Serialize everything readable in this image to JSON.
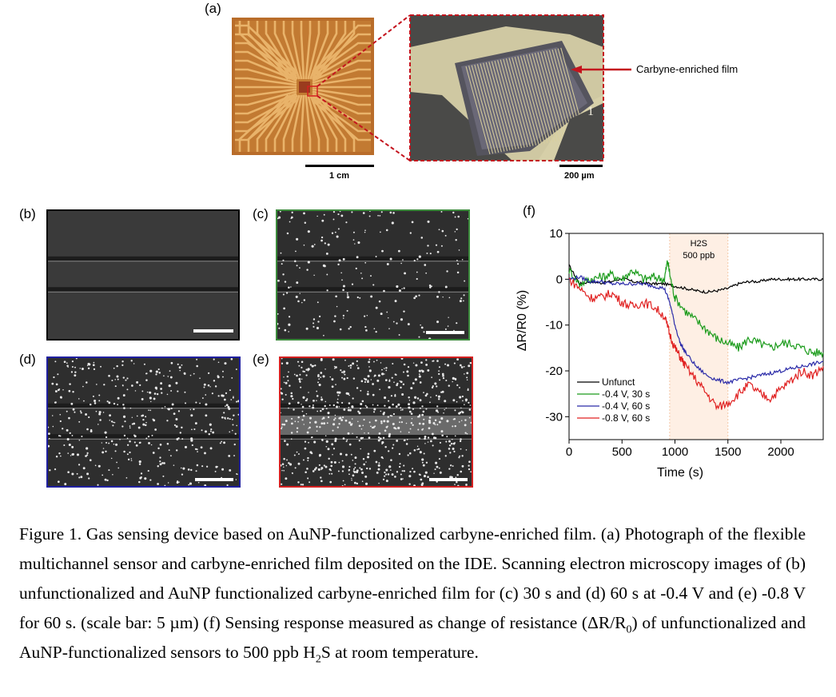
{
  "panels": {
    "a": "(a)",
    "b": "(b)",
    "c": "(c)",
    "d": "(d)",
    "e": "(e)",
    "f": "(f)"
  },
  "panel_a": {
    "scale_left": "1 cm",
    "scale_right": "200 µm",
    "annotation": "Carbyne-enriched film",
    "channel_number": "1"
  },
  "chart_data": {
    "type": "line",
    "xlabel": "Time (s)",
    "ylabel": "ΔR/R0 (%)",
    "xlim": [
      0,
      2400
    ],
    "ylim": [
      -35,
      10
    ],
    "xticks": [
      0,
      500,
      1000,
      1500,
      2000
    ],
    "yticks": [
      10,
      0,
      -10,
      -20,
      -30
    ],
    "shaded_region": {
      "x": [
        950,
        1500
      ],
      "label_line1": "H2S",
      "label_line2": "500 ppb"
    },
    "legend_placement": "bottom-left",
    "series": [
      {
        "name": "Unfunct",
        "color": "#000000",
        "x": [
          0,
          100,
          200,
          300,
          400,
          500,
          600,
          700,
          800,
          900,
          1000,
          1100,
          1200,
          1300,
          1400,
          1500,
          1600,
          1700,
          1800,
          1900,
          2000,
          2100,
          2200,
          2300,
          2400
        ],
        "y": [
          3,
          -1,
          -0.5,
          -0.8,
          -0.5,
          0.2,
          -0.5,
          -0.8,
          -1,
          -1,
          -1.5,
          -2,
          -2.5,
          -2.8,
          -2.5,
          -2,
          -1,
          -0.5,
          -0.5,
          0,
          0,
          0,
          0,
          0,
          0
        ]
      },
      {
        "name": "-0.4 V, 30 s",
        "color": "#1a9b1a",
        "x": [
          0,
          100,
          200,
          300,
          400,
          500,
          600,
          700,
          800,
          900,
          930,
          960,
          1000,
          1100,
          1200,
          1300,
          1400,
          1500,
          1600,
          1700,
          1800,
          1900,
          2000,
          2100,
          2200,
          2300,
          2400
        ],
        "y": [
          2,
          -1,
          0,
          0.5,
          1,
          0,
          2,
          0,
          0.5,
          0,
          4,
          0,
          -4,
          -7,
          -9,
          -11,
          -13,
          -14,
          -15,
          -13,
          -14,
          -15,
          -14,
          -14,
          -15,
          -16,
          -16
        ]
      },
      {
        "name": "-0.4 V, 60 s",
        "color": "#2a2aa8",
        "x": [
          0,
          100,
          200,
          300,
          400,
          500,
          600,
          700,
          800,
          900,
          950,
          1000,
          1050,
          1100,
          1200,
          1300,
          1400,
          1500,
          1600,
          1700,
          1800,
          1900,
          2000,
          2100,
          2200,
          2300,
          2400
        ],
        "y": [
          0,
          0.5,
          -0.5,
          -0.5,
          -1,
          -1,
          -1,
          -1,
          -1.5,
          -2,
          -5,
          -10,
          -14,
          -16,
          -19,
          -21,
          -22,
          -22.5,
          -22,
          -21.5,
          -21,
          -20.5,
          -20,
          -19.5,
          -19,
          -18.5,
          -18
        ]
      },
      {
        "name": "-0.8 V, 60 s",
        "color": "#e02020",
        "x": [
          0,
          100,
          200,
          300,
          400,
          500,
          600,
          700,
          800,
          900,
          950,
          1000,
          1050,
          1100,
          1200,
          1300,
          1400,
          1500,
          1600,
          1700,
          1800,
          1900,
          2000,
          2100,
          2200,
          2300,
          2400
        ],
        "y": [
          0,
          -2,
          -4,
          -4,
          -3,
          -5,
          -6,
          -5,
          -6,
          -8,
          -12,
          -15,
          -17,
          -19,
          -22,
          -25,
          -28,
          -27,
          -25,
          -23,
          -25,
          -26,
          -24,
          -22,
          -20,
          -21,
          -19
        ]
      }
    ]
  },
  "caption": {
    "p1": "Figure 1. Gas sensing device based on AuNP-functionalized carbyne-enriched film. (a) Photograph of the flexible multichannel sensor and carbyne-enriched film deposited on the IDE. Scanning electron microscopy images of (b) unfunctionalized and AuNP functionalized carbyne-enriched film for (c) 30 s and (d) 60 s at -0.4 V and (e) -0.8 V for 60 s. (scale bar: 5 µm) (f) Sensing response measured as change of resistance (ΔR/R",
    "sub1": "0",
    "p2": ") of unfunctionalized and AuNP-functionalized sensors to 500 ppb H",
    "sub2": "2",
    "p3": "S at room temperature."
  }
}
